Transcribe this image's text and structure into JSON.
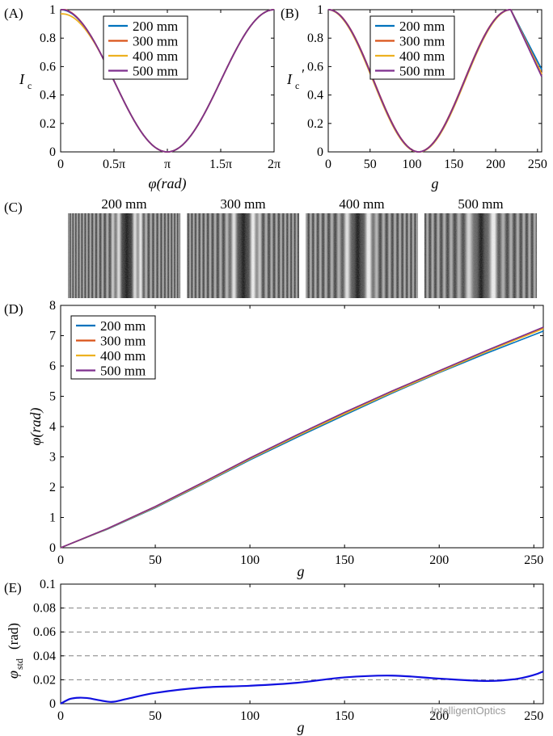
{
  "watermark": "IntelligentOptics",
  "colors": {
    "s200": "#0072BD",
    "s300": "#D95319",
    "s400": "#EDB120",
    "s500": "#7E2F8E",
    "std": "#1010E0",
    "dash": "#808080"
  },
  "chart_data": [
    {
      "panel": "(A)",
      "type": "line",
      "xlabel": "φ(rad)",
      "ylabel": "I",
      "ylabel_sub": "c",
      "xlim": [
        0,
        6.2832
      ],
      "ylim": [
        0,
        1
      ],
      "xticks": [
        0,
        1.5708,
        3.1416,
        4.7124,
        6.2832
      ],
      "xticklabels": [
        "0",
        "0.5π",
        "π",
        "1.5π",
        "2π"
      ],
      "yticks": [
        0,
        0.2,
        0.4,
        0.6,
        0.8,
        1
      ],
      "yticklabels": [
        "0",
        "0.2",
        "0.4",
        "0.6",
        "0.8",
        "1"
      ],
      "legend": "top-center",
      "model": "Ic = (1 + cos(x)) / 2",
      "series": [
        {
          "name": "200 mm",
          "color": "s200"
        },
        {
          "name": "300 mm",
          "color": "s300"
        },
        {
          "name": "400 mm",
          "color": "s400"
        },
        {
          "name": "500 mm",
          "color": "s500"
        }
      ]
    },
    {
      "panel": "(B)",
      "type": "line",
      "xlabel": "g",
      "ylabel": "I",
      "ylabel_sub": "c",
      "ylabel_prime": "′",
      "xlim": [
        0,
        255
      ],
      "ylim": [
        0,
        1
      ],
      "xticks": [
        0,
        50,
        100,
        150,
        200,
        250
      ],
      "xticklabels": [
        "0",
        "50",
        "100",
        "150",
        "200",
        "250"
      ],
      "yticks": [
        0,
        0.2,
        0.4,
        0.6,
        0.8,
        1
      ],
      "yticklabels": [
        "0",
        "0.2",
        "0.4",
        "0.6",
        "0.8",
        "1"
      ],
      "legend": "top-right",
      "key_points": {
        "min_g": 108,
        "min_value": 0,
        "peak_g": 218,
        "peak_value": 1,
        "end_g": 255,
        "end_value": 0.53
      },
      "series": [
        {
          "name": "200 mm",
          "color": "s200"
        },
        {
          "name": "300 mm",
          "color": "s300"
        },
        {
          "name": "400 mm",
          "color": "s400"
        },
        {
          "name": "500 mm",
          "color": "s500"
        }
      ]
    },
    {
      "panel": "(D)",
      "type": "line",
      "xlabel": "g",
      "ylabel": "φ(rad)",
      "xlim": [
        0,
        255
      ],
      "ylim": [
        0,
        8
      ],
      "xticks": [
        0,
        50,
        100,
        150,
        200,
        250
      ],
      "xticklabels": [
        "0",
        "50",
        "100",
        "150",
        "200",
        "250"
      ],
      "yticks": [
        0,
        1,
        2,
        3,
        4,
        5,
        6,
        7,
        8
      ],
      "yticklabels": [
        "0",
        "1",
        "2",
        "3",
        "4",
        "5",
        "6",
        "7",
        "8"
      ],
      "legend": "top-left",
      "x": [
        0,
        25,
        50,
        75,
        100,
        125,
        150,
        175,
        200,
        225,
        255
      ],
      "series": [
        {
          "name": "200 mm",
          "color": "s200",
          "values": [
            0,
            0.62,
            1.32,
            2.1,
            2.9,
            3.65,
            4.38,
            5.1,
            5.78,
            6.42,
            7.15
          ]
        },
        {
          "name": "300 mm",
          "color": "s300",
          "values": [
            0,
            0.64,
            1.36,
            2.15,
            2.96,
            3.72,
            4.46,
            5.17,
            5.84,
            6.5,
            7.26
          ]
        },
        {
          "name": "400 mm",
          "color": "s400",
          "values": [
            0,
            0.63,
            1.34,
            2.12,
            2.93,
            3.69,
            4.42,
            5.13,
            5.8,
            6.47,
            7.23
          ]
        },
        {
          "name": "500 mm",
          "color": "s500",
          "values": [
            0,
            0.64,
            1.36,
            2.15,
            2.96,
            3.73,
            4.47,
            5.17,
            5.84,
            6.51,
            7.28
          ]
        }
      ]
    },
    {
      "panel": "(E)",
      "type": "line",
      "xlabel": "g",
      "ylabel": "φ",
      "ylabel_sub": "std",
      "ylabel_unit": "(rad)",
      "xlim": [
        0,
        255
      ],
      "ylim": [
        0,
        0.1
      ],
      "xticks": [
        0,
        50,
        100,
        150,
        200,
        250
      ],
      "xticklabels": [
        "0",
        "50",
        "100",
        "150",
        "200",
        "250"
      ],
      "yticks": [
        0,
        0.02,
        0.04,
        0.06,
        0.08,
        0.1
      ],
      "yticklabels": [
        "0",
        "0.02",
        "0.04",
        "0.06",
        "0.08",
        "0.1"
      ],
      "grid_dashed_y": [
        0.02,
        0.04,
        0.06,
        0.08
      ],
      "x": [
        0,
        5,
        10,
        15,
        20,
        27,
        35,
        50,
        75,
        100,
        125,
        150,
        175,
        200,
        225,
        240,
        250,
        255
      ],
      "values": [
        0,
        0.004,
        0.005,
        0.0045,
        0.003,
        0.0015,
        0.004,
        0.009,
        0.0135,
        0.015,
        0.0175,
        0.022,
        0.0235,
        0.021,
        0.019,
        0.0205,
        0.024,
        0.027
      ],
      "color": "std"
    }
  ],
  "images": {
    "panel": "(C)",
    "labels": [
      "200 mm",
      "300 mm",
      "400 mm",
      "500 mm"
    ]
  }
}
